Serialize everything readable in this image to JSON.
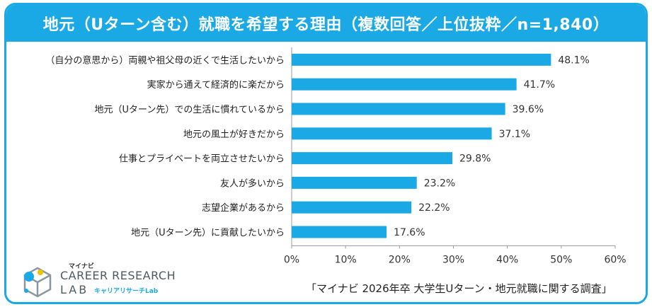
{
  "header": {
    "title": "地元（Uターン含む）就職を希望する理由（複数回答／上位抜粋／n=1,840）"
  },
  "chart_data": {
    "type": "bar",
    "orientation": "horizontal",
    "title": "地元（Uターン含む）就職を希望する理由（複数回答／上位抜粋／n=1,840）",
    "categories": [
      "（自分の意思から）両親や祖父母の近くで生活したいから",
      "実家から通えて経済的に楽だから",
      "地元（Uターン先）での生活に慣れているから",
      "地元の風土が好きだから",
      "仕事とプライベートを両立させたいから",
      "友人が多いから",
      "志望企業があるから",
      "地元（Uターン先）に貢献したいから"
    ],
    "values": [
      48.1,
      41.7,
      39.6,
      37.1,
      29.8,
      23.2,
      22.2,
      17.6
    ],
    "value_labels": [
      "48.1%",
      "41.7%",
      "39.6%",
      "37.1%",
      "29.8%",
      "23.2%",
      "22.2%",
      "17.6%"
    ],
    "xlim": [
      0,
      60
    ],
    "ticks": [
      "0%",
      "10%",
      "20%",
      "30%",
      "40%",
      "50%",
      "60%"
    ],
    "bar_color": "#1aa9e4",
    "axis_color": "#999999"
  },
  "logo": {
    "small": "マイナビ",
    "main": "CAREER RESEARCH",
    "lab": "LAB",
    "sub": "キャリアリサーチLab"
  },
  "footer": {
    "source": "「マイナビ 2026年卒 大学生Uターン・地元就職に関する調査」"
  },
  "colors": {
    "accent": "#1aa9e4",
    "text": "#222222",
    "logo_gray": "#4d5a66"
  }
}
